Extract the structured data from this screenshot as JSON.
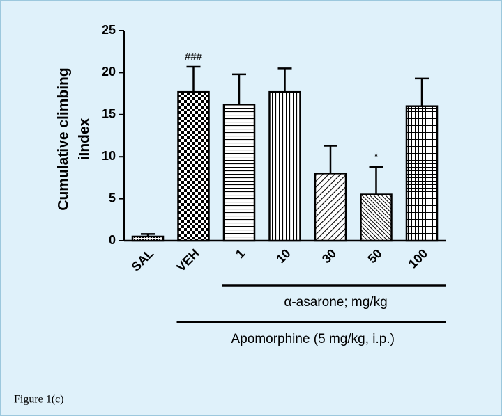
{
  "chart_data": {
    "type": "bar",
    "y_label": [
      "Cumulative climbing",
      "iIndex"
    ],
    "categories": [
      "SAL",
      "VEH",
      "1",
      "10",
      "30",
      "50",
      "100"
    ],
    "values": [
      0.5,
      17.7,
      16.2,
      17.7,
      8.0,
      5.5,
      16.0
    ],
    "errors": [
      0.3,
      3.0,
      3.6,
      2.8,
      3.3,
      3.3,
      3.3
    ],
    "ylim": [
      0,
      25
    ],
    "yticks": [
      0,
      5,
      10,
      15,
      20,
      25
    ],
    "annotations": [
      {
        "text": "###",
        "category": "VEH"
      },
      {
        "text": "*",
        "category": "50"
      }
    ],
    "groups": [
      {
        "label": "α-asarone; mg/kg",
        "from": "1",
        "to": "100"
      },
      {
        "label": "Apomorphine (5 mg/kg, i.p.)",
        "from": "VEH",
        "to": "100"
      }
    ],
    "caption": "Figure 1(c)"
  }
}
